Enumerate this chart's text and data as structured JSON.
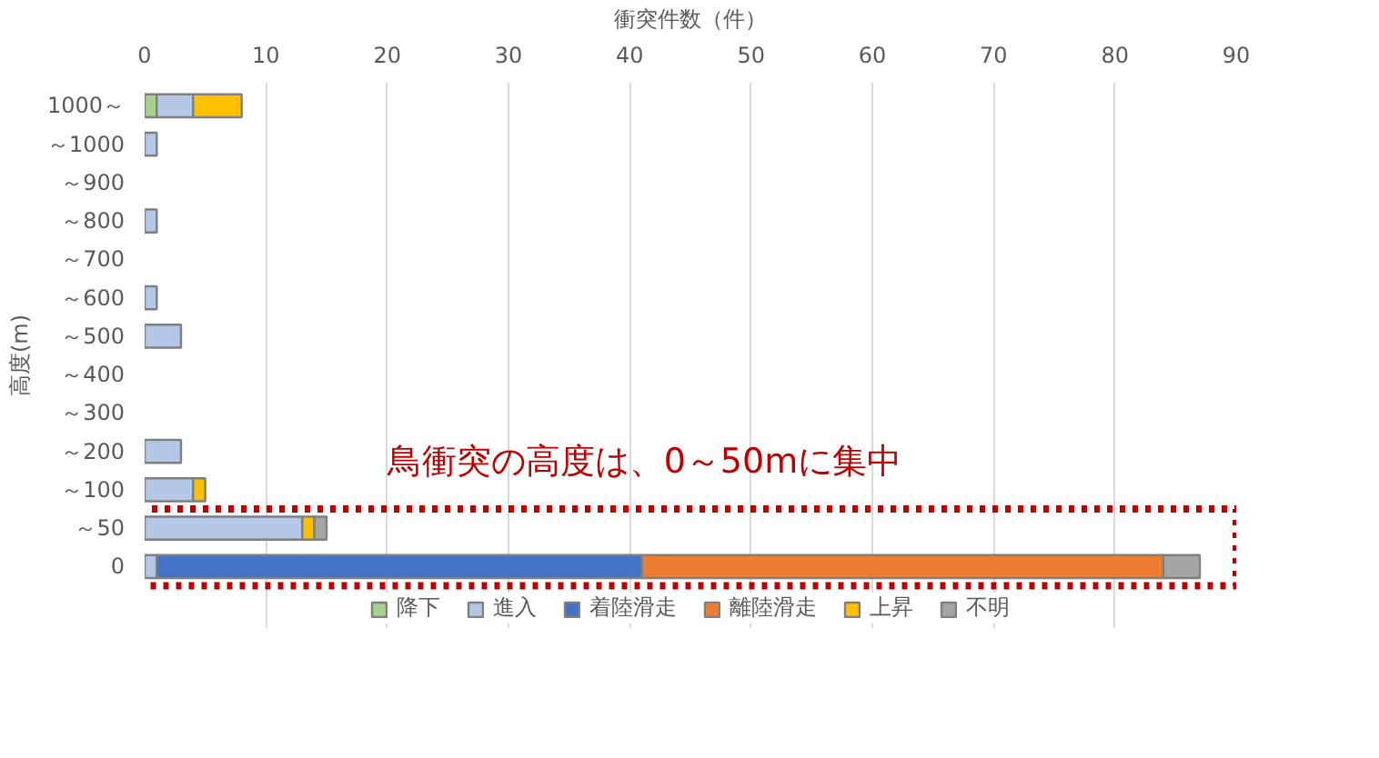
{
  "chart_data": {
    "type": "bar",
    "orientation": "horizontal",
    "stacked": true,
    "xlabel": "衝突件数（件）",
    "ylabel": "高度(m)",
    "categories": [
      "1000～",
      "～1000",
      "～900",
      "～800",
      "～700",
      "～600",
      "～500",
      "～400",
      "～300",
      "～200",
      "～100",
      "～50",
      "0"
    ],
    "series": [
      {
        "name": "降下",
        "color": "#a9d18e",
        "values": [
          1,
          0,
          0,
          0,
          0,
          0,
          0,
          0,
          0,
          0,
          0,
          0,
          0
        ]
      },
      {
        "name": "進入",
        "color": "#b4c7e7",
        "values": [
          3,
          1,
          0,
          1,
          0,
          1,
          3,
          0,
          0,
          3,
          4,
          13,
          1
        ]
      },
      {
        "name": "着陸滑走",
        "color": "#4472c4",
        "values": [
          0,
          0,
          0,
          0,
          0,
          0,
          0,
          0,
          0,
          0,
          0,
          0,
          40
        ]
      },
      {
        "name": "離陸滑走",
        "color": "#ed7d31",
        "values": [
          0,
          0,
          0,
          0,
          0,
          0,
          0,
          0,
          0,
          0,
          0,
          0,
          43
        ]
      },
      {
        "name": "上昇",
        "color": "#ffc000",
        "values": [
          4,
          0,
          0,
          0,
          0,
          0,
          0,
          0,
          0,
          0,
          1,
          1,
          0
        ]
      },
      {
        "name": "不明",
        "color": "#a5a5a5",
        "values": [
          0,
          0,
          0,
          0,
          0,
          0,
          0,
          0,
          0,
          0,
          0,
          1,
          3
        ]
      }
    ],
    "xlim": [
      0,
      90
    ],
    "xticks": [
      0,
      10,
      20,
      30,
      40,
      50,
      60,
      70,
      80,
      90
    ],
    "grid": "x",
    "legend": "bottom",
    "annotations": [
      "鳥衝突の高度は、0～50mに集中"
    ]
  }
}
